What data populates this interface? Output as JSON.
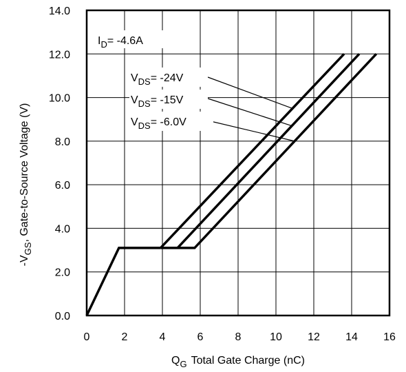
{
  "chart_data": {
    "type": "line",
    "xlabel": {
      "symbol": "Q",
      "sub": "G",
      "text": "Total Gate Charge (nC)"
    },
    "ylabel": {
      "prefix": "-V",
      "sub": "GS",
      "text": ", Gate-to-Source Voltage (V)"
    },
    "xlim": [
      0,
      16
    ],
    "ylim": [
      0,
      14
    ],
    "x_ticks": [
      "0",
      "2",
      "4",
      "6",
      "8",
      "10",
      "12",
      "14",
      "16"
    ],
    "y_ticks": [
      "0.0",
      "2.0",
      "4.0",
      "6.0",
      "8.0",
      "10.0",
      "12.0",
      "14.0"
    ],
    "grid": true,
    "condition": {
      "symbol": "I",
      "sub": "D",
      "value": "= -4.6A"
    },
    "shared_segment": {
      "x": [
        0,
        1.7,
        3.9
      ],
      "y": [
        0,
        3.1,
        3.1
      ]
    },
    "series": [
      {
        "label": {
          "symbol": "V",
          "sub": "DS",
          "value": "= -24V"
        },
        "x": [
          3.9,
          13.6
        ],
        "y": [
          3.1,
          12.0
        ]
      },
      {
        "label": {
          "symbol": "V",
          "sub": "DS",
          "value": "= -15V"
        },
        "x": [
          4.8,
          14.4
        ],
        "y": [
          3.1,
          12.0
        ]
      },
      {
        "label": {
          "symbol": "V",
          "sub": "DS",
          "value": "= -6.0V"
        },
        "x": [
          3.9,
          5.7,
          15.3
        ],
        "y": [
          3.1,
          3.1,
          12.0
        ]
      }
    ]
  }
}
